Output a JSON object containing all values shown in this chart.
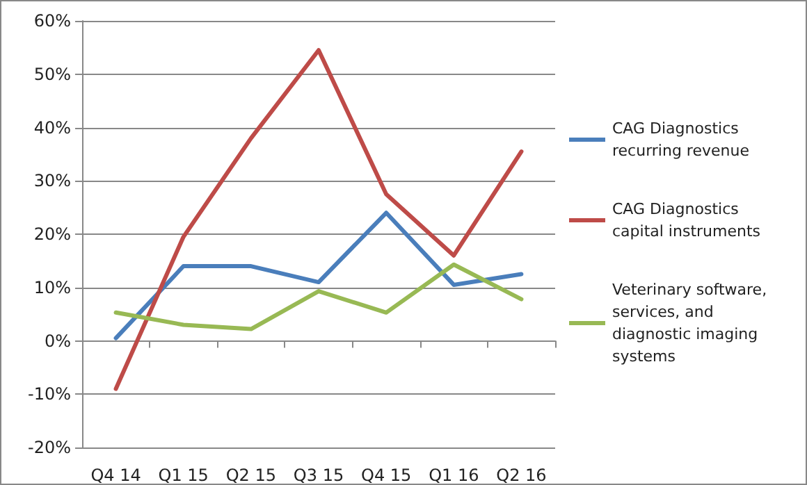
{
  "chart_data": {
    "type": "line",
    "categories": [
      "Q4 14",
      "Q1 15",
      "Q2 15",
      "Q3 15",
      "Q4 15",
      "Q1 16",
      "Q2 16"
    ],
    "series": [
      {
        "name": "CAG Diagnostics recurring revenue",
        "color": "#4a7ebb",
        "values": [
          0.5,
          14,
          14,
          11,
          24,
          10.5,
          12.5
        ]
      },
      {
        "name": "CAG Diagnostics capital instruments",
        "color": "#be4b48",
        "values": [
          -9,
          19.5,
          38,
          54.5,
          27.5,
          16,
          35.5
        ]
      },
      {
        "name": "Veterinary software, services, and diagnostic imaging systems",
        "color": "#98b954",
        "values": [
          5.3,
          3,
          2.2,
          9.3,
          5.3,
          14.3,
          7.8
        ]
      }
    ],
    "ylim": [
      -20,
      60
    ],
    "yticks": [
      {
        "value": -20,
        "label": "-20%"
      },
      {
        "value": -10,
        "label": "-10%"
      },
      {
        "value": 0,
        "label": "0%"
      },
      {
        "value": 10,
        "label": "10%"
      },
      {
        "value": 20,
        "label": "20%"
      },
      {
        "value": 30,
        "label": "30%"
      },
      {
        "value": 40,
        "label": "40%"
      },
      {
        "value": 50,
        "label": "50%"
      },
      {
        "value": 60,
        "label": "60%"
      }
    ],
    "grid": "y",
    "legend": "right",
    "marker": "none",
    "line_style": "solid"
  }
}
